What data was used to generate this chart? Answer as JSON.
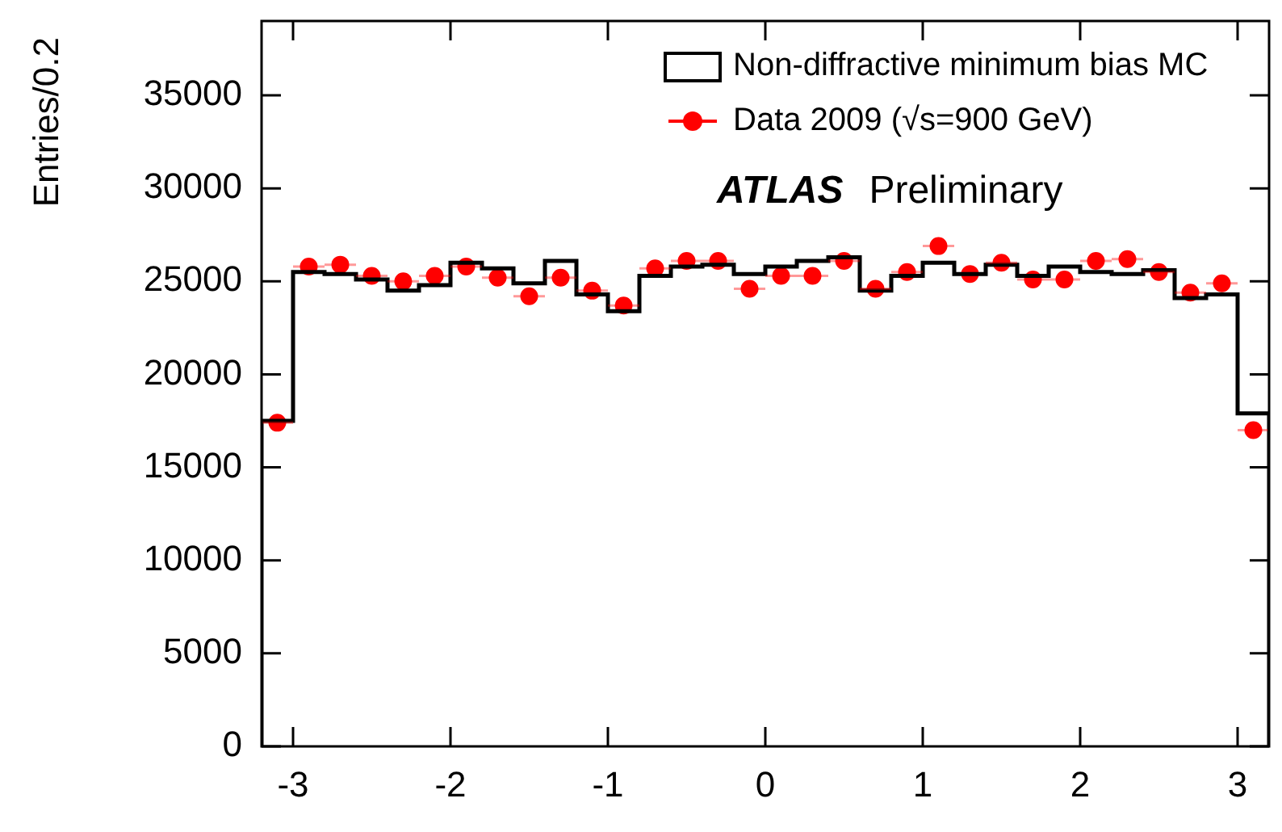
{
  "chart_data": {
    "type": "histogram",
    "ylabel": "Entries/0.2",
    "annotations": [
      "ATLAS Preliminary"
    ],
    "bins": [
      -3.2,
      -3.0,
      -2.8,
      -2.6,
      -2.4,
      -2.2,
      -2.0,
      -1.8,
      -1.6,
      -1.4,
      -1.2,
      -1.0,
      -0.8,
      -0.6,
      -0.4,
      -0.2,
      0,
      0.2,
      0.4,
      0.6,
      0.8,
      1.0,
      1.2,
      1.4,
      1.6,
      1.8,
      2.0,
      2.2,
      2.4,
      2.6,
      2.8,
      3.0,
      3.2
    ],
    "series": [
      {
        "name": "Non-diffractive minimum bias MC",
        "color": "#000000",
        "values": [
          17500,
          25500,
          25400,
          25100,
          24500,
          24800,
          26000,
          25700,
          24900,
          26100,
          24300,
          23400,
          25300,
          25800,
          25900,
          25400,
          25800,
          26100,
          26300,
          24500,
          25300,
          26000,
          25400,
          25900,
          25300,
          25800,
          25500,
          25400,
          25600,
          24100,
          24300,
          17900
        ]
      },
      {
        "name": "Data 2009 (√s=900 GeV)",
        "type": "scatter",
        "color": "#ff0000",
        "marker": "circle",
        "x": [
          -3.1,
          -2.9,
          -2.7,
          -2.5,
          -2.3,
          -2.1,
          -1.9,
          -1.7,
          -1.5,
          -1.3,
          -1.1,
          -0.9,
          -0.7,
          -0.5,
          -0.3,
          -0.1,
          0.1,
          0.3,
          0.5,
          0.7,
          0.9,
          1.1,
          1.3,
          1.5,
          1.7,
          1.9,
          2.1,
          2.3,
          2.5,
          2.7,
          2.9,
          3.1
        ],
        "values": [
          17400,
          25800,
          25900,
          25300,
          25000,
          25300,
          25800,
          25200,
          24200,
          25200,
          24500,
          23700,
          25700,
          26100,
          26100,
          24600,
          25300,
          25300,
          26100,
          24600,
          25500,
          26900,
          25400,
          26000,
          25100,
          25100,
          26100,
          26200,
          25500,
          24400,
          24900,
          17000
        ],
        "xerrors": [
          0.1,
          0.1,
          0.1,
          0.1,
          0.1,
          0.1,
          0.1,
          0.1,
          0.1,
          0.1,
          0.1,
          0.1,
          0.1,
          0.1,
          0.1,
          0.1,
          0.1,
          0.1,
          0.1,
          0.1,
          0.1,
          0.1,
          null,
          0.1,
          0.1,
          0.1,
          0.1,
          0.1,
          0.1,
          0.1,
          0.1,
          0.1
        ]
      }
    ],
    "xlim": [
      -3.2,
      3.2
    ],
    "xticks": [
      -3,
      -2,
      -1,
      0,
      1,
      2,
      3
    ],
    "ylim": [
      0,
      39000
    ],
    "yticks": [
      0,
      5000,
      10000,
      15000,
      20000,
      25000,
      30000,
      35000
    ],
    "grid": false,
    "legend": "top right"
  }
}
